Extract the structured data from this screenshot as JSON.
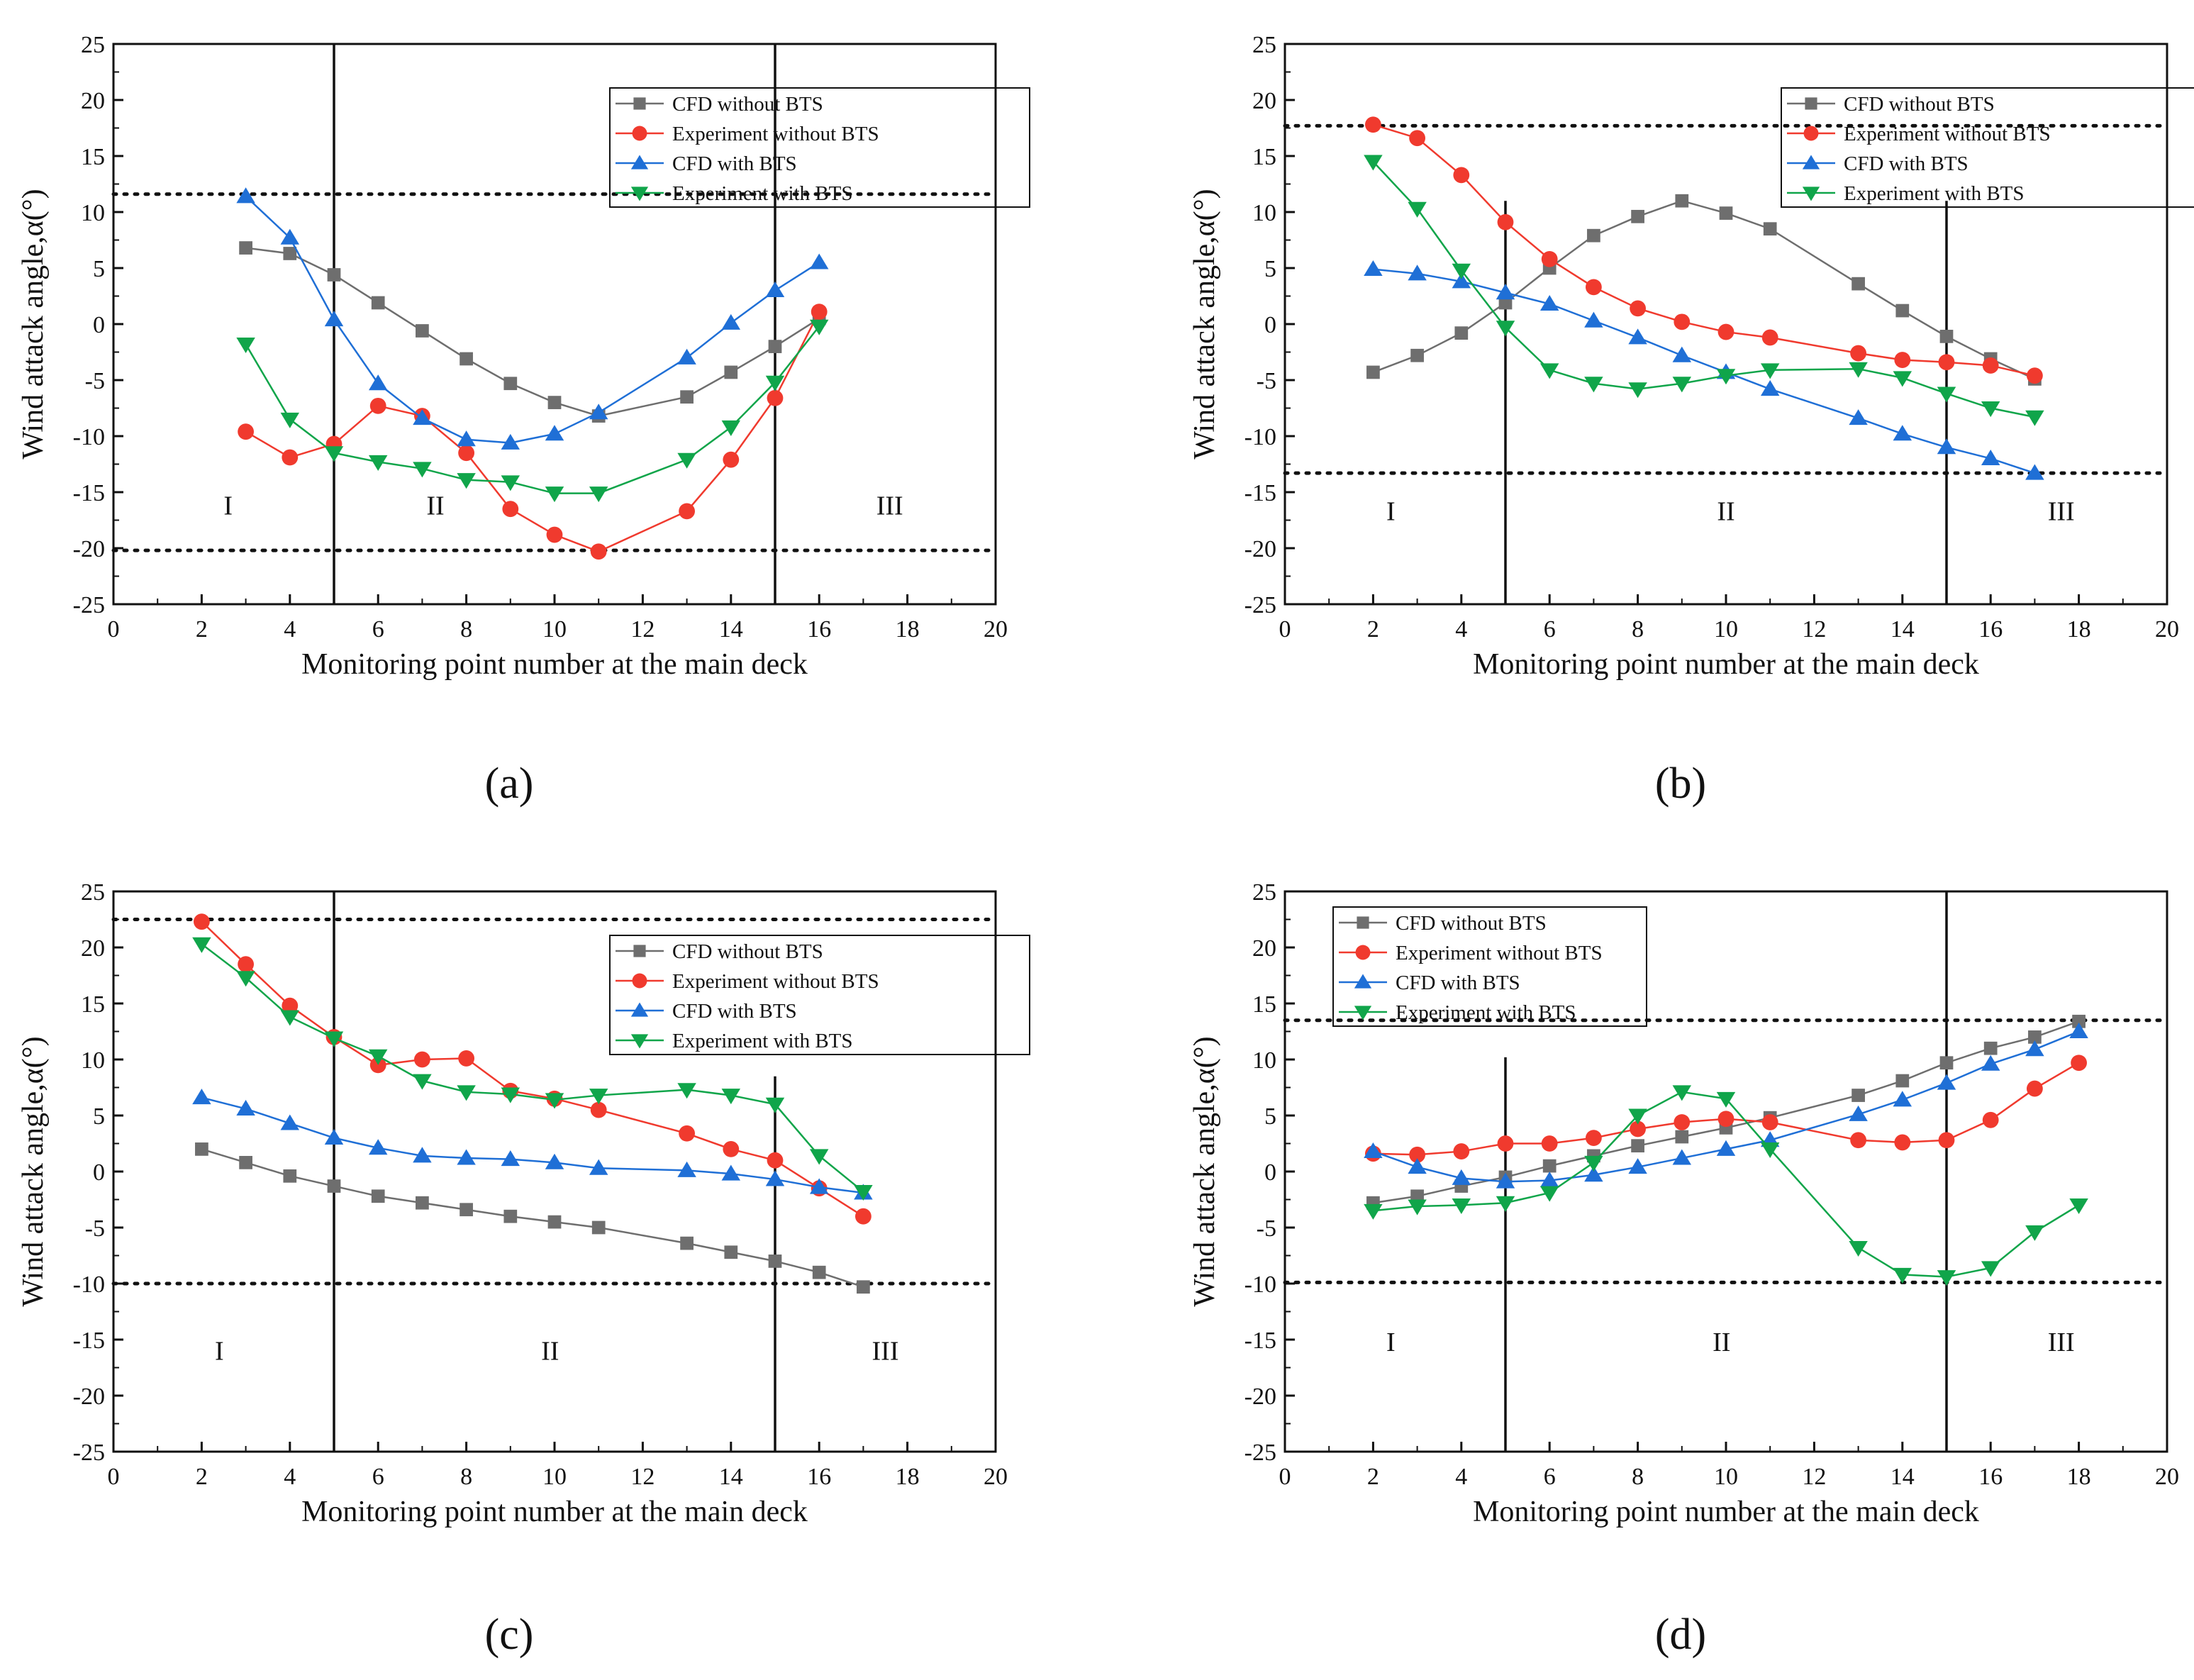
{
  "colors": {
    "cfd_without": "#6e6e6e",
    "exp_without": "#f03a2e",
    "cfd_with": "#1f6fd6",
    "exp_with": "#10a54a",
    "frame": "#111111"
  },
  "chart_data": [
    {
      "type": "line",
      "panel_label": "a",
      "panel_label_text": "(a)",
      "xlabel": "Monitoring point number at the main deck",
      "ylabel": "Wind attack angle,α(°)",
      "xlim": [
        0,
        20
      ],
      "ylim": [
        -25,
        25
      ],
      "xticks": [
        0,
        2,
        4,
        6,
        8,
        10,
        12,
        14,
        16,
        18,
        20
      ],
      "yticks": [
        -25,
        -20,
        -15,
        -10,
        -5,
        0,
        5,
        10,
        15,
        20,
        25
      ],
      "dotted_y": [
        11.6,
        -20.2
      ],
      "vlines": [
        5,
        15
      ],
      "vline_range": [
        -25,
        25
      ],
      "regions": [
        {
          "text": "I",
          "x": 2.6,
          "y": -17
        },
        {
          "text": "II",
          "x": 7.3,
          "y": -17
        },
        {
          "text": "III",
          "x": 17.6,
          "y": -17
        }
      ],
      "legend": {
        "position": "top-right"
      },
      "series": [
        {
          "name": "CFD without BTS",
          "marker": "square",
          "color_key": "cfd_without",
          "x": [
            3,
            4,
            5,
            6,
            7,
            8,
            9,
            10,
            11,
            13,
            14,
            15,
            16
          ],
          "y": [
            6.8,
            6.3,
            4.4,
            1.9,
            -0.6,
            -3.1,
            -5.3,
            -7.0,
            -8.2,
            -6.5,
            -4.3,
            -2.0,
            0.5
          ]
        },
        {
          "name": "Experiment without BTS",
          "marker": "circle",
          "color_key": "exp_without",
          "x": [
            3,
            4,
            5,
            6,
            7,
            8,
            9,
            10,
            11,
            13,
            14,
            15,
            16
          ],
          "y": [
            -9.6,
            -11.9,
            -10.7,
            -7.3,
            -8.2,
            -11.5,
            -16.5,
            -18.8,
            -20.3,
            -16.7,
            -12.1,
            -6.6,
            1.1
          ]
        },
        {
          "name": "CFD with BTS",
          "marker": "triangle-up",
          "color_key": "cfd_with",
          "x": [
            3,
            4,
            5,
            6,
            7,
            8,
            9,
            10,
            11,
            13,
            14,
            15,
            16
          ],
          "y": [
            11.4,
            7.7,
            0.4,
            -5.3,
            -8.4,
            -10.3,
            -10.6,
            -9.8,
            -7.9,
            -3.0,
            0.1,
            3.0,
            5.5
          ]
        },
        {
          "name": "Experiment with BTS",
          "marker": "triangle-down",
          "color_key": "exp_with",
          "x": [
            3,
            4,
            5,
            6,
            7,
            8,
            9,
            10,
            11,
            13,
            14,
            15,
            16
          ],
          "y": [
            -1.8,
            -8.5,
            -11.5,
            -12.3,
            -12.9,
            -13.9,
            -14.1,
            -15.1,
            -15.1,
            -12.1,
            -9.2,
            -5.2,
            -0.2
          ]
        }
      ]
    },
    {
      "type": "line",
      "panel_label": "b",
      "panel_label_text": "(b)",
      "xlabel": "Monitoring point number at the main deck",
      "ylabel": "Wind attack angle,α(°)",
      "xlim": [
        0,
        20
      ],
      "ylim": [
        -25,
        25
      ],
      "xticks": [
        0,
        2,
        4,
        6,
        8,
        10,
        12,
        14,
        16,
        18,
        20
      ],
      "yticks": [
        -25,
        -20,
        -15,
        -10,
        -5,
        0,
        5,
        10,
        15,
        20,
        25
      ],
      "dotted_y": [
        17.7,
        -13.3
      ],
      "vlines": [
        5,
        15
      ],
      "vline_range": [
        -25,
        11
      ],
      "regions": [
        {
          "text": "I",
          "x": 2.4,
          "y": -17.5
        },
        {
          "text": "II",
          "x": 10.0,
          "y": -17.5
        },
        {
          "text": "III",
          "x": 17.6,
          "y": -17.5
        }
      ],
      "legend": {
        "position": "top-right"
      },
      "series": [
        {
          "name": "CFD without BTS",
          "marker": "square",
          "color_key": "cfd_without",
          "x": [
            2,
            3,
            4,
            5,
            6,
            7,
            8,
            9,
            10,
            11,
            13,
            14,
            15,
            16,
            17
          ],
          "y": [
            -4.3,
            -2.8,
            -0.8,
            1.9,
            5.0,
            7.9,
            9.6,
            11.0,
            9.9,
            8.5,
            3.6,
            1.2,
            -1.1,
            -3.1,
            -4.9
          ]
        },
        {
          "name": "Experiment without BTS",
          "marker": "circle",
          "color_key": "exp_without",
          "x": [
            2,
            3,
            4,
            5,
            6,
            7,
            8,
            9,
            10,
            11,
            13,
            14,
            15,
            16,
            17
          ],
          "y": [
            17.8,
            16.6,
            13.3,
            9.1,
            5.8,
            3.3,
            1.4,
            0.2,
            -0.7,
            -1.2,
            -2.6,
            -3.2,
            -3.4,
            -3.7,
            -4.6
          ]
        },
        {
          "name": "CFD with BTS",
          "marker": "triangle-up",
          "color_key": "cfd_with",
          "x": [
            2,
            3,
            4,
            5,
            6,
            7,
            8,
            9,
            10,
            11,
            13,
            14,
            15,
            16,
            17
          ],
          "y": [
            4.9,
            4.5,
            3.8,
            2.8,
            1.8,
            0.3,
            -1.2,
            -2.8,
            -4.3,
            -5.8,
            -8.4,
            -9.8,
            -11.0,
            -12.0,
            -13.3
          ]
        },
        {
          "name": "Experiment with BTS",
          "marker": "triangle-down",
          "color_key": "exp_with",
          "x": [
            2,
            3,
            4,
            5,
            6,
            7,
            8,
            9,
            10,
            11,
            13,
            14,
            15,
            16,
            17
          ],
          "y": [
            14.5,
            10.3,
            4.8,
            -0.3,
            -4.1,
            -5.3,
            -5.8,
            -5.3,
            -4.6,
            -4.1,
            -4.0,
            -4.8,
            -6.2,
            -7.5,
            -8.3
          ]
        }
      ]
    },
    {
      "type": "line",
      "panel_label": "c",
      "panel_label_text": "(c)",
      "xlabel": "Monitoring point number at the main deck",
      "ylabel": "Wind attack angle,α(°)",
      "xlim": [
        0,
        20
      ],
      "ylim": [
        -25,
        25
      ],
      "xticks": [
        0,
        2,
        4,
        6,
        8,
        10,
        12,
        14,
        16,
        18,
        20
      ],
      "yticks": [
        -25,
        -20,
        -15,
        -10,
        -5,
        0,
        5,
        10,
        15,
        20,
        25
      ],
      "dotted_y": [
        22.5,
        -10.0
      ],
      "vlines": [
        5,
        15
      ],
      "vline_range": [
        -25,
        25
      ],
      "vline_ranges": [
        [
          -25,
          25
        ],
        [
          -25,
          8.5
        ]
      ],
      "regions": [
        {
          "text": "I",
          "x": 2.4,
          "y": -16.8
        },
        {
          "text": "II",
          "x": 9.9,
          "y": -16.8
        },
        {
          "text": "III",
          "x": 17.5,
          "y": -16.8
        }
      ],
      "legend": {
        "position": "top-right"
      },
      "series": [
        {
          "name": "CFD without BTS",
          "marker": "square",
          "color_key": "cfd_without",
          "x": [
            2,
            3,
            4,
            5,
            6,
            7,
            8,
            9,
            10,
            11,
            13,
            14,
            15,
            16,
            17
          ],
          "y": [
            2.0,
            0.8,
            -0.4,
            -1.3,
            -2.2,
            -2.8,
            -3.4,
            -4.0,
            -4.5,
            -5.0,
            -6.4,
            -7.2,
            -8.0,
            -9.0,
            -10.3
          ]
        },
        {
          "name": "Experiment without BTS",
          "marker": "circle",
          "color_key": "exp_without",
          "x": [
            2,
            3,
            4,
            5,
            6,
            7,
            8,
            9,
            10,
            11,
            13,
            14,
            15,
            16,
            17
          ],
          "y": [
            22.3,
            18.5,
            14.8,
            12.0,
            9.5,
            10.0,
            10.1,
            7.2,
            6.5,
            5.5,
            3.4,
            2.0,
            1.0,
            -1.5,
            -4.0
          ]
        },
        {
          "name": "CFD with BTS",
          "marker": "triangle-up",
          "color_key": "cfd_with",
          "x": [
            2,
            3,
            4,
            5,
            6,
            7,
            8,
            9,
            10,
            11,
            13,
            14,
            15,
            16,
            17
          ],
          "y": [
            6.6,
            5.6,
            4.3,
            3.0,
            2.1,
            1.4,
            1.2,
            1.1,
            0.8,
            0.3,
            0.1,
            -0.2,
            -0.7,
            -1.4,
            -1.9
          ]
        },
        {
          "name": "Experiment with BTS",
          "marker": "triangle-down",
          "color_key": "exp_with",
          "x": [
            2,
            3,
            4,
            5,
            6,
            7,
            8,
            9,
            10,
            11,
            13,
            14,
            15,
            16,
            17
          ],
          "y": [
            20.3,
            17.3,
            13.8,
            11.9,
            10.3,
            8.1,
            7.1,
            6.9,
            6.4,
            6.8,
            7.3,
            6.8,
            6.0,
            1.4,
            -1.8
          ]
        }
      ]
    },
    {
      "type": "line",
      "panel_label": "d",
      "panel_label_text": "(d)",
      "xlabel": "Monitoring point number at the main deck",
      "ylabel": "Wind attack angle,α(°)",
      "xlim": [
        0,
        20
      ],
      "ylim": [
        -25,
        25
      ],
      "xticks": [
        0,
        2,
        4,
        6,
        8,
        10,
        12,
        14,
        16,
        18,
        20
      ],
      "yticks": [
        -25,
        -20,
        -15,
        -10,
        -5,
        0,
        5,
        10,
        15,
        20,
        25
      ],
      "dotted_y": [
        13.5,
        -9.9
      ],
      "vlines": [
        5,
        15
      ],
      "vline_range": [
        -25,
        25
      ],
      "vline_ranges": [
        [
          -25,
          10.2
        ],
        [
          -25,
          25
        ]
      ],
      "regions": [
        {
          "text": "I",
          "x": 2.4,
          "y": -16.0
        },
        {
          "text": "II",
          "x": 9.9,
          "y": -16.0
        },
        {
          "text": "III",
          "x": 17.6,
          "y": -16.0
        }
      ],
      "legend": {
        "position": "top-left"
      },
      "series": [
        {
          "name": "CFD without BTS",
          "marker": "square",
          "color_key": "cfd_without",
          "x": [
            2,
            3,
            4,
            5,
            6,
            7,
            8,
            9,
            10,
            11,
            13,
            14,
            15,
            16,
            17,
            18
          ],
          "y": [
            -2.8,
            -2.2,
            -1.3,
            -0.5,
            0.5,
            1.4,
            2.3,
            3.1,
            3.9,
            4.8,
            6.8,
            8.1,
            9.7,
            11.0,
            12.0,
            13.4
          ]
        },
        {
          "name": "Experiment without BTS",
          "marker": "circle",
          "color_key": "exp_without",
          "x": [
            2,
            3,
            4,
            5,
            6,
            7,
            8,
            9,
            10,
            11,
            13,
            14,
            15,
            16,
            17,
            18
          ],
          "y": [
            1.6,
            1.5,
            1.8,
            2.5,
            2.5,
            3.0,
            3.8,
            4.4,
            4.7,
            4.4,
            2.8,
            2.6,
            2.8,
            4.6,
            7.4,
            9.7
          ]
        },
        {
          "name": "CFD with BTS",
          "marker": "triangle-up",
          "color_key": "cfd_with",
          "x": [
            2,
            3,
            4,
            5,
            6,
            7,
            8,
            9,
            10,
            11,
            13,
            14,
            15,
            16,
            17,
            18
          ],
          "y": [
            1.8,
            0.4,
            -0.6,
            -0.9,
            -0.8,
            -0.3,
            0.4,
            1.2,
            2.0,
            2.8,
            5.1,
            6.4,
            7.9,
            9.6,
            10.9,
            12.5
          ]
        },
        {
          "name": "Experiment with BTS",
          "marker": "triangle-down",
          "color_key": "exp_with",
          "x": [
            2,
            3,
            4,
            5,
            6,
            7,
            8,
            9,
            10,
            11,
            13,
            14,
            15,
            16,
            17,
            18
          ],
          "y": [
            -3.5,
            -3.1,
            -3.0,
            -2.8,
            -1.9,
            0.8,
            5.0,
            7.1,
            6.5,
            2.0,
            -6.8,
            -9.2,
            -9.4,
            -8.6,
            -5.4,
            -3.0
          ]
        }
      ]
    }
  ]
}
